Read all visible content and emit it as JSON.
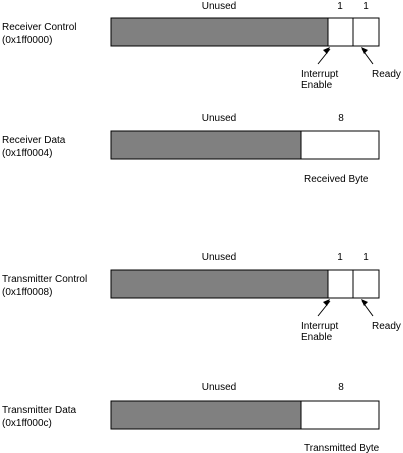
{
  "registers": [
    {
      "name": "Receiver Control",
      "address": "(0x1ff0000)",
      "unused_label": "Unused",
      "bit_widths": [
        "1",
        "1"
      ],
      "field_labels": [
        "Interrupt\nEnable",
        "Ready"
      ]
    },
    {
      "name": "Receiver Data",
      "address": "(0x1ff0004)",
      "unused_label": "Unused",
      "bit_widths": [
        "8"
      ],
      "field_labels": [
        "Received Byte"
      ]
    },
    {
      "name": "Transmitter Control",
      "address": "(0x1ff0008)",
      "unused_label": "Unused",
      "bit_widths": [
        "1",
        "1"
      ],
      "field_labels": [
        "Interrupt\nEnable",
        "Ready"
      ]
    },
    {
      "name": "Transmitter Data",
      "address": "(0x1ff000c)",
      "unused_label": "Unused",
      "bit_widths": [
        "8"
      ],
      "field_labels": [
        "Transmitted Byte"
      ]
    }
  ]
}
